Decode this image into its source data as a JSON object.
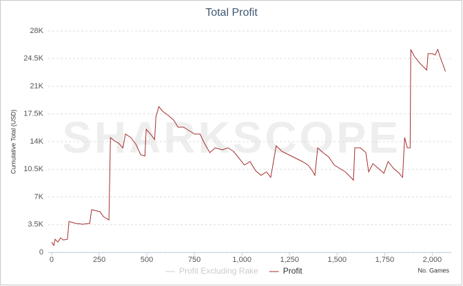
{
  "chart_data": {
    "type": "line",
    "title": "Total Profit",
    "watermark": "SHARKSCOPE",
    "y_label": "Cumulative Total (USD)",
    "x_label": "No. Games",
    "xlim": [
      -18,
      2100
    ],
    "ylim": [
      0,
      28000
    ],
    "xticks": [
      0,
      250,
      500,
      750,
      {
        "value": 1000,
        "label": "1,000"
      },
      {
        "value": 1250,
        "label": "1,250"
      },
      {
        "value": 1500,
        "label": "1,500"
      },
      {
        "value": 1750,
        "label": "1,750"
      },
      {
        "value": 2000,
        "label": "2,000"
      }
    ],
    "yticks": [
      0,
      {
        "value": 3500,
        "label": "3.5K"
      },
      {
        "value": 7000,
        "label": "7K"
      },
      {
        "value": 10500,
        "label": "10.5K"
      },
      {
        "value": 14000,
        "label": "14K"
      },
      {
        "value": 17500,
        "label": "17.5K"
      },
      {
        "value": 21000,
        "label": "21K"
      },
      {
        "value": 24500,
        "label": "24.5K"
      },
      {
        "value": 28000,
        "label": "28K"
      }
    ],
    "grid": true,
    "legend": "bottom",
    "x": [
      0,
      11,
      18,
      33,
      47,
      62,
      83,
      91,
      127,
      163,
      200,
      210,
      254,
      272,
      301,
      309,
      330,
      352,
      374,
      388,
      417,
      443,
      468,
      490,
      497,
      519,
      541,
      548,
      563,
      584,
      613,
      642,
      664,
      693,
      722,
      751,
      780,
      802,
      831,
      860,
      897,
      926,
      955,
      984,
      1013,
      1042,
      1071,
      1100,
      1129,
      1151,
      1180,
      1209,
      1245,
      1281,
      1318,
      1347,
      1369,
      1383,
      1398,
      1426,
      1455,
      1485,
      1514,
      1543,
      1572,
      1586,
      1593,
      1622,
      1651,
      1666,
      1688,
      1717,
      1746,
      1768,
      1797,
      1826,
      1844,
      1855,
      1869,
      1884,
      1887,
      1906,
      1935,
      1971,
      1978,
      2000,
      2015,
      2029,
      2044,
      2058,
      2069
    ],
    "series": [
      {
        "name": "Profit Excluding Rake",
        "color": "#cccccc",
        "visible": false,
        "values": [
          null,
          null,
          null,
          null,
          null,
          null,
          null,
          null,
          null,
          null,
          null,
          null,
          null,
          null,
          null,
          null,
          null,
          null,
          null,
          null,
          null,
          null,
          null,
          null,
          null,
          null,
          null,
          null,
          null,
          null,
          null,
          null,
          null,
          null,
          null,
          null,
          null,
          null,
          null,
          null,
          null,
          null,
          null,
          null,
          null,
          null,
          null,
          null,
          null,
          null,
          null,
          null,
          null,
          null,
          null,
          null,
          null,
          null,
          null,
          null,
          null,
          null,
          null,
          null,
          null,
          null,
          null,
          null,
          null,
          null,
          null,
          null,
          null,
          null,
          null,
          null,
          null,
          null,
          null,
          null,
          null,
          null,
          null,
          null,
          null,
          null,
          null,
          null,
          null,
          null,
          null
        ]
      },
      {
        "name": "Profit",
        "color": "#a52a2a",
        "visible": true,
        "values": [
          1300,
          870,
          1650,
          1300,
          1830,
          1560,
          1650,
          3900,
          3650,
          3560,
          3650,
          5400,
          5130,
          4520,
          4090,
          14500,
          14100,
          13800,
          13200,
          14960,
          14500,
          13650,
          12350,
          12170,
          15570,
          14960,
          14260,
          17130,
          18430,
          17830,
          17300,
          16700,
          15830,
          15830,
          15390,
          14960,
          14960,
          13830,
          12610,
          13220,
          12960,
          13220,
          12780,
          11910,
          11040,
          11480,
          10350,
          9740,
          10170,
          9480,
          13480,
          12780,
          12350,
          11910,
          11480,
          11040,
          10350,
          9740,
          13220,
          12610,
          12090,
          11040,
          10610,
          10170,
          9480,
          9130,
          13220,
          13220,
          12610,
          10170,
          11220,
          10610,
          10000,
          11480,
          10610,
          10000,
          9480,
          14520,
          13220,
          13220,
          25650,
          24780,
          23910,
          23040,
          25130,
          25130,
          24960,
          25650,
          24520,
          23650,
          22870
        ]
      }
    ]
  }
}
